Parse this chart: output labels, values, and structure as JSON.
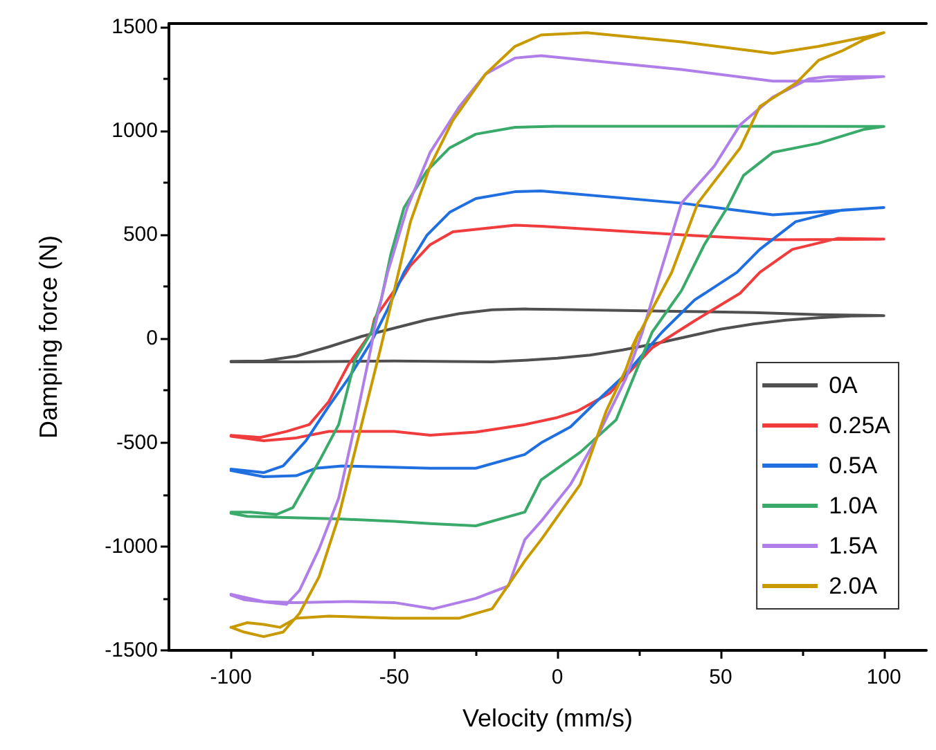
{
  "chart_data": {
    "type": "line",
    "xlabel": "Velocity (mm/s)",
    "ylabel": "Damping force (N)",
    "xlim": [
      -119,
      113
    ],
    "xticks": [
      -100,
      -50,
      0,
      50,
      100
    ],
    "ylim": [
      -1500,
      1515
    ],
    "yticks": [
      -1500,
      -1000,
      -500,
      0,
      500,
      1000,
      1500
    ],
    "grid": false,
    "legend": "right",
    "marker": "none",
    "line_style": "solid",
    "series": [
      {
        "name": "0A",
        "color": "#505050",
        "x": [
          -100,
          -80,
          -50,
          -20,
          -10,
          0,
          10,
          20,
          30,
          40,
          50,
          60,
          70,
          80,
          90,
          100,
          80,
          60,
          40,
          20,
          0,
          -10,
          -20,
          -30,
          -40,
          -50,
          -60,
          -70,
          -80,
          -90,
          -100
        ],
        "values": [
          -112,
          -112,
          -108,
          -112,
          -105,
          -95,
          -80,
          -55,
          -25,
          10,
          45,
          70,
          88,
          100,
          108,
          110,
          115,
          125,
          130,
          135,
          140,
          142,
          138,
          120,
          90,
          50,
          10,
          -40,
          -85,
          -108,
          -110
        ]
      },
      {
        "name": "0.25A",
        "color": "#f03c3c",
        "x": [
          -100,
          -90,
          -80,
          -70,
          -50,
          -39,
          -25,
          -10,
          0,
          6,
          16,
          29,
          42,
          56,
          62,
          72,
          86,
          100,
          67,
          42,
          -5,
          -13,
          -32,
          -39,
          -45,
          -50,
          -56,
          -57,
          -64,
          -70,
          -76,
          -83,
          -91,
          -100
        ],
        "values": [
          -470,
          -492,
          -478,
          -447,
          -447,
          -465,
          -450,
          -414,
          -380,
          -350,
          -263,
          -45,
          85,
          218,
          318,
          429,
          482,
          478,
          475,
          495,
          540,
          545,
          513,
          451,
          351,
          230,
          96,
          30,
          -125,
          -303,
          -414,
          -447,
          -476,
          -466
        ]
      },
      {
        "name": "0.5A",
        "color": "#1f6fe0",
        "x": [
          -100,
          -90,
          -80,
          -74,
          -66,
          -39,
          -25,
          -10,
          -5,
          4,
          12,
          21,
          32,
          42,
          55,
          62,
          73,
          87,
          100,
          88,
          66,
          38,
          -5,
          -13,
          -25,
          -33,
          -40,
          -47,
          -52,
          -57,
          -64,
          -70,
          -77,
          -84,
          -90,
          -100
        ],
        "values": [
          -635,
          -665,
          -660,
          -624,
          -613,
          -624,
          -624,
          -558,
          -502,
          -425,
          -303,
          -170,
          30,
          185,
          318,
          429,
          562,
          617,
          630,
          617,
          595,
          651,
          710,
          706,
          673,
          607,
          496,
          318,
          141,
          -15,
          -192,
          -325,
          -491,
          -613,
          -645,
          -628
        ]
      },
      {
        "name": "1.0A",
        "color": "#3aaa6a",
        "x": [
          -100,
          -95,
          -85,
          -67,
          -50,
          -39,
          -25,
          -10,
          -5,
          7,
          18,
          29,
          38,
          45,
          52,
          57,
          66,
          80,
          94,
          100,
          60,
          20,
          -1,
          -13,
          -25,
          -33,
          -40,
          -47,
          -51,
          -54,
          -57,
          -62,
          -67,
          -73,
          -81,
          -86,
          -94,
          -100
        ],
        "values": [
          -840,
          -855,
          -860,
          -868,
          -879,
          -890,
          -901,
          -835,
          -680,
          -547,
          -391,
          30,
          230,
          451,
          629,
          784,
          895,
          939,
          1006,
          1020,
          1021,
          1021,
          1021,
          1016,
          983,
          917,
          806,
          629,
          407,
          185,
          30,
          -103,
          -414,
          -591,
          -813,
          -846,
          -835,
          -835
        ]
      },
      {
        "name": "1.5A",
        "color": "#b07ee8",
        "x": [
          -100,
          -90,
          -80,
          -65,
          -50,
          -38,
          -25,
          -15,
          -10,
          -5,
          4,
          12,
          21,
          26,
          32,
          38,
          48,
          56,
          66,
          77,
          83,
          94,
          100,
          80,
          66,
          38,
          -5,
          -13,
          -22,
          -30,
          -39,
          -46,
          -52,
          -56,
          -57,
          -62,
          -67,
          -73,
          -79,
          -83,
          -96,
          -100
        ],
        "values": [
          -1230,
          -1265,
          -1270,
          -1265,
          -1270,
          -1300,
          -1250,
          -1190,
          -968,
          -879,
          -702,
          -480,
          -192,
          30,
          341,
          651,
          828,
          1028,
          1161,
          1249,
          1260,
          1260,
          1260,
          1238,
          1238,
          1294,
          1360,
          1349,
          1272,
          1116,
          895,
          629,
          318,
          52,
          -37,
          -414,
          -768,
          -1012,
          -1212,
          -1279,
          -1256,
          -1234
        ]
      },
      {
        "name": "2.0A",
        "color": "#c99a00",
        "x": [
          -100,
          -95,
          -90,
          -85,
          -80,
          -70,
          -50,
          -30,
          -20,
          -10,
          -5,
          7,
          15,
          21,
          25,
          23,
          35,
          43,
          56,
          62,
          73,
          80,
          87,
          94,
          100,
          94,
          80,
          66,
          38,
          9,
          -5,
          -13,
          -22,
          -32,
          -39,
          -45,
          -50,
          -54,
          -60,
          -67,
          -73,
          -79,
          -84,
          -90,
          -96,
          -100
        ],
        "values": [
          -1390,
          -1367,
          -1375,
          -1389,
          -1345,
          -1335,
          -1345,
          -1345,
          -1300,
          -1070,
          -968,
          -702,
          -347,
          -148,
          30,
          -37,
          318,
          651,
          917,
          1116,
          1227,
          1338,
          1382,
          1438,
          1471,
          1449,
          1405,
          1371,
          1427,
          1471,
          1460,
          1405,
          1272,
          1050,
          828,
          562,
          230,
          -37,
          -414,
          -857,
          -1146,
          -1322,
          -1412,
          -1434,
          -1412,
          -1389
        ]
      }
    ]
  }
}
